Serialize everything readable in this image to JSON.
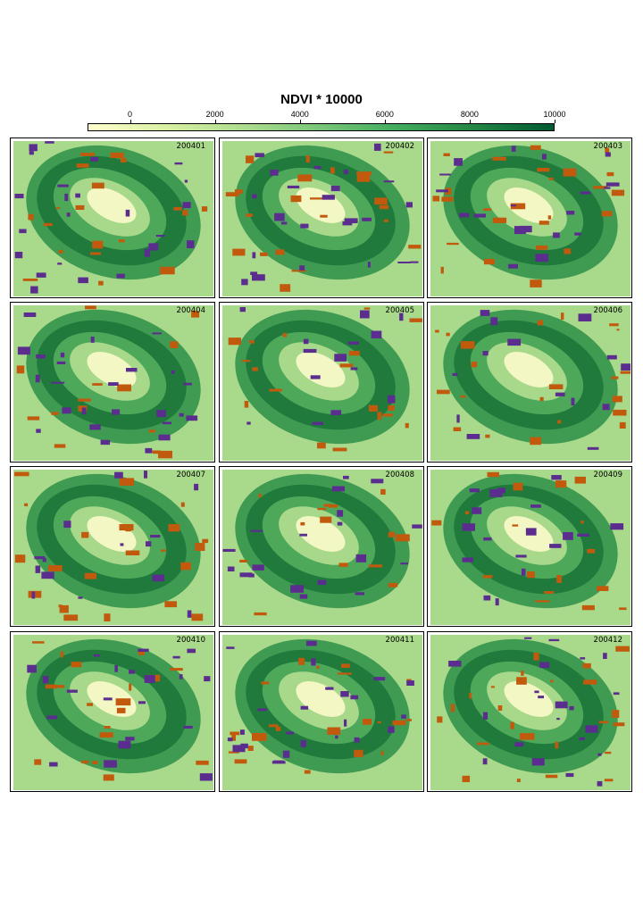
{
  "chart_data": {
    "type": "heatmap",
    "title": "NDVI * 10000",
    "legend": {
      "ticks": [
        0,
        2000,
        4000,
        6000,
        8000,
        10000
      ],
      "tick_labels": [
        "0",
        "2000",
        "4000",
        "6000",
        "8000",
        "10000"
      ],
      "min": -1000,
      "max": 10000,
      "colors": [
        "#ffffcc",
        "#d9f0a3",
        "#addd8e",
        "#78c679",
        "#41ab5d",
        "#238443",
        "#005a32"
      ]
    },
    "panels": [
      {
        "label": "200401"
      },
      {
        "label": "200402"
      },
      {
        "label": "200403"
      },
      {
        "label": "200404"
      },
      {
        "label": "200405"
      },
      {
        "label": "200406"
      },
      {
        "label": "200407"
      },
      {
        "label": "200408"
      },
      {
        "label": "200409"
      },
      {
        "label": "200410"
      },
      {
        "label": "200411"
      },
      {
        "label": "200412"
      }
    ],
    "overlay_colors": {
      "orange": "#c25a0d",
      "purple": "#5b2d8e"
    }
  }
}
